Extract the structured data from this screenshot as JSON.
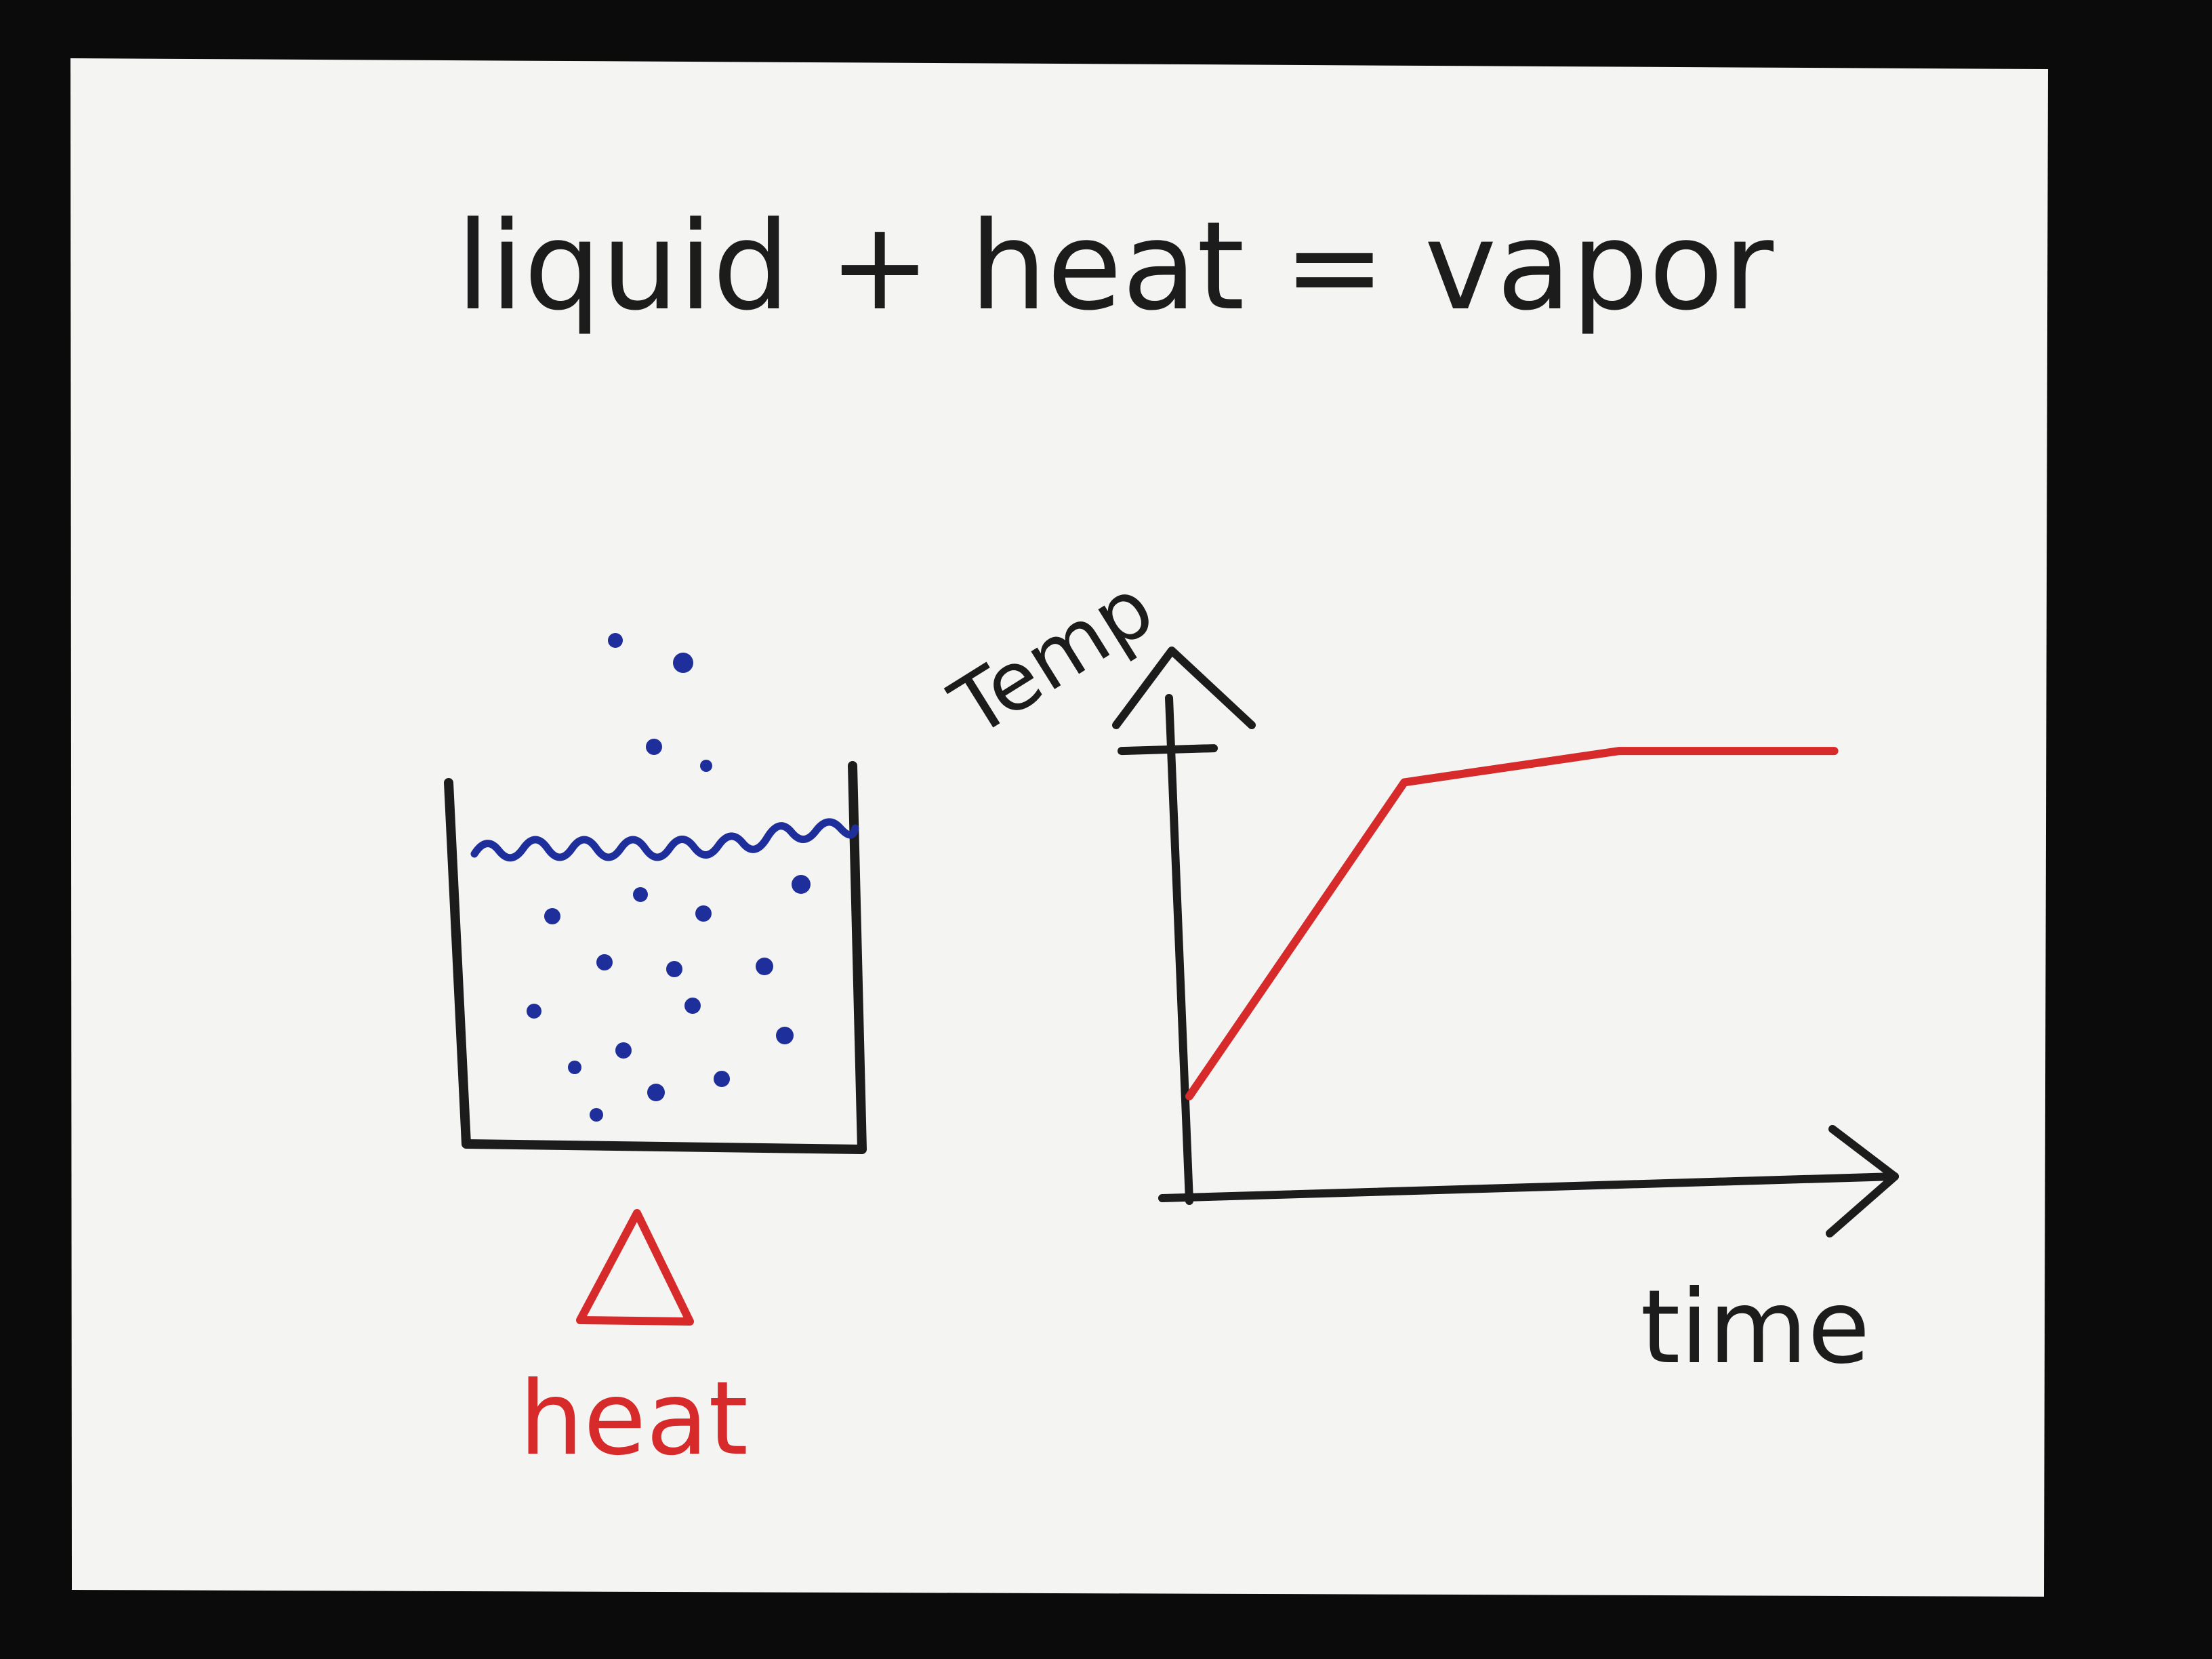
{
  "colors": {
    "background": "#0b0b0b",
    "paper": "#f4f4f2",
    "ink_black": "#1c1c1c",
    "ink_blue": "#1e2f9c",
    "ink_red": "#d72a2a"
  },
  "equation": {
    "text": "liquid + heat = vapor"
  },
  "beaker": {
    "heat_symbol": "Δ",
    "heat_label": "heat"
  },
  "chart_data": {
    "type": "line",
    "title": "",
    "xlabel": "time",
    "ylabel": "Temp",
    "x": [
      0,
      1,
      2,
      3
    ],
    "series": [
      {
        "values": [
          1,
          4,
          4.3,
          4.3
        ]
      }
    ],
    "ylim": [
      0,
      5
    ],
    "xlim": [
      0,
      3.2
    ],
    "ticks": [
      {
        "axis": "y",
        "at": 4.3,
        "label": ""
      }
    ],
    "grid": false,
    "legend": "none"
  }
}
